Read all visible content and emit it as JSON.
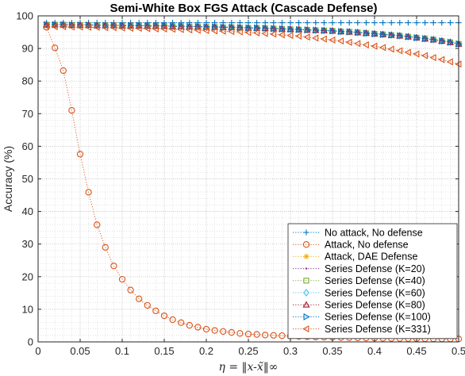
{
  "chart_data": {
    "type": "line",
    "title": "Semi-White Box FGS Attack (Cascade Defense)",
    "xlabel": "η = ‖x-x̃‖∞",
    "ylabel": "Accuracy (%)",
    "xlim": [
      0,
      0.5
    ],
    "ylim": [
      0,
      100
    ],
    "xticks": [
      0,
      0.05,
      0.1,
      0.15,
      0.2,
      0.25,
      0.3,
      0.35,
      0.4,
      0.45,
      0.5
    ],
    "xtick_labels": [
      "0",
      "0.05",
      "0.1",
      "0.15",
      "0.2",
      "0.25",
      "0.3",
      "0.35",
      "0.4",
      "0.45",
      "0.5"
    ],
    "yticks": [
      0,
      10,
      20,
      30,
      40,
      50,
      60,
      70,
      80,
      90,
      100
    ],
    "yticks_labels": [
      "0",
      "10",
      "20",
      "30",
      "40",
      "50",
      "60",
      "70",
      "80",
      "90",
      "100"
    ],
    "grid": true,
    "minor_grid": true,
    "legend_position": "bottom-right",
    "x_start": 0.01,
    "x_step": 0.01,
    "x_count": 50,
    "series": [
      {
        "name": "No attack, No defense",
        "color": "#0072BD",
        "marker": "plus",
        "values": [
          97.9,
          97.9,
          97.9,
          97.9,
          97.9,
          97.9,
          97.9,
          97.9,
          97.9,
          97.9,
          97.9,
          97.9,
          97.9,
          97.9,
          97.9,
          97.9,
          97.9,
          97.9,
          97.9,
          97.9,
          97.9,
          97.9,
          97.9,
          97.9,
          97.9,
          97.9,
          97.9,
          97.9,
          97.9,
          97.9,
          97.9,
          97.9,
          97.9,
          97.9,
          97.9,
          97.9,
          97.9,
          97.9,
          97.9,
          97.9,
          97.9,
          97.9,
          97.9,
          97.9,
          97.9,
          97.9,
          97.9,
          97.9,
          97.9,
          97.9
        ]
      },
      {
        "name": "Attack, No defense",
        "color": "#D95319",
        "marker": "circle",
        "values": [
          96.5,
          90.2,
          83.2,
          71.0,
          57.6,
          45.9,
          35.9,
          29.0,
          23.3,
          19.2,
          15.9,
          13.2,
          11.2,
          9.5,
          8.0,
          6.8,
          5.9,
          5.1,
          4.5,
          3.9,
          3.5,
          3.2,
          2.9,
          2.6,
          2.4,
          2.3,
          2.1,
          2.0,
          1.9,
          1.8,
          1.7,
          1.6,
          1.5,
          1.45,
          1.4,
          1.35,
          1.3,
          1.25,
          1.2,
          1.15,
          1.1,
          1.08,
          1.05,
          1.02,
          1.0,
          0.98,
          0.96,
          0.94,
          0.92,
          0.9
        ]
      },
      {
        "name": "Attack, DAE Defense",
        "color": "#EDB120",
        "marker": "asterisk",
        "values": [
          97.4,
          97.4,
          97.4,
          97.3,
          97.3,
          97.3,
          97.2,
          97.2,
          97.2,
          97.1,
          97.1,
          97.1,
          97.0,
          97.0,
          97.0,
          96.9,
          96.9,
          96.8,
          96.8,
          96.7,
          96.7,
          96.6,
          96.6,
          96.5,
          96.4,
          96.4,
          96.3,
          96.2,
          96.1,
          96.0,
          95.9,
          95.8,
          95.7,
          95.6,
          95.5,
          95.3,
          95.2,
          95.0,
          94.8,
          94.6,
          94.4,
          94.2,
          94.0,
          93.7,
          93.4,
          93.1,
          92.8,
          92.4,
          92.0,
          91.5
        ]
      },
      {
        "name": "Series Defense (K=20)",
        "color": "#7E2F8E",
        "marker": "point",
        "values": [
          97.3,
          97.3,
          97.3,
          97.2,
          97.2,
          97.2,
          97.1,
          97.1,
          97.1,
          97.0,
          97.0,
          97.0,
          96.9,
          96.9,
          96.9,
          96.8,
          96.8,
          96.7,
          96.7,
          96.6,
          96.6,
          96.5,
          96.5,
          96.4,
          96.3,
          96.3,
          96.2,
          96.1,
          96.0,
          95.9,
          95.8,
          95.7,
          95.6,
          95.5,
          95.4,
          95.2,
          95.1,
          94.9,
          94.7,
          94.5,
          94.3,
          94.1,
          93.9,
          93.6,
          93.3,
          93.0,
          92.7,
          92.3,
          91.9,
          91.4
        ]
      },
      {
        "name": "Series Defense (K=40)",
        "color": "#77AC30",
        "marker": "square",
        "values": [
          97.3,
          97.3,
          97.3,
          97.2,
          97.2,
          97.2,
          97.1,
          97.1,
          97.1,
          97.0,
          97.0,
          97.0,
          96.9,
          96.9,
          96.9,
          96.8,
          96.8,
          96.7,
          96.7,
          96.6,
          96.6,
          96.5,
          96.5,
          96.4,
          96.3,
          96.3,
          96.2,
          96.1,
          96.0,
          95.9,
          95.8,
          95.7,
          95.6,
          95.5,
          95.4,
          95.2,
          95.1,
          94.9,
          94.7,
          94.5,
          94.3,
          94.1,
          93.9,
          93.6,
          93.3,
          93.0,
          92.7,
          92.3,
          91.9,
          91.4
        ]
      },
      {
        "name": "Series Defense (K=60)",
        "color": "#4DBEEE",
        "marker": "diamond",
        "values": [
          97.3,
          97.3,
          97.3,
          97.2,
          97.2,
          97.2,
          97.1,
          97.1,
          97.1,
          97.0,
          97.0,
          97.0,
          96.9,
          96.9,
          96.9,
          96.8,
          96.8,
          96.7,
          96.7,
          96.6,
          96.6,
          96.5,
          96.5,
          96.4,
          96.3,
          96.3,
          96.2,
          96.1,
          96.0,
          95.9,
          95.8,
          95.7,
          95.6,
          95.5,
          95.4,
          95.2,
          95.1,
          94.9,
          94.7,
          94.5,
          94.3,
          94.1,
          93.9,
          93.6,
          93.3,
          93.0,
          92.7,
          92.3,
          91.9,
          91.4
        ]
      },
      {
        "name": "Series Defense (K=80)",
        "color": "#A2142F",
        "marker": "triangle-up",
        "values": [
          97.3,
          97.3,
          97.3,
          97.2,
          97.2,
          97.2,
          97.1,
          97.1,
          97.1,
          97.0,
          97.0,
          97.0,
          96.9,
          96.9,
          96.9,
          96.8,
          96.8,
          96.7,
          96.7,
          96.6,
          96.6,
          96.5,
          96.5,
          96.4,
          96.3,
          96.3,
          96.2,
          96.1,
          96.0,
          95.9,
          95.8,
          95.7,
          95.6,
          95.5,
          95.4,
          95.2,
          95.1,
          94.9,
          94.7,
          94.5,
          94.3,
          94.1,
          93.9,
          93.6,
          93.3,
          93.0,
          92.7,
          92.3,
          91.9,
          91.4
        ]
      },
      {
        "name": "Series Defense (K=100)",
        "color": "#0072BD",
        "marker": "triangle-right",
        "values": [
          97.3,
          97.3,
          97.3,
          97.2,
          97.2,
          97.2,
          97.1,
          97.1,
          97.1,
          97.0,
          97.0,
          97.0,
          96.9,
          96.9,
          96.9,
          96.8,
          96.8,
          96.7,
          96.7,
          96.6,
          96.6,
          96.5,
          96.5,
          96.4,
          96.3,
          96.3,
          96.2,
          96.1,
          96.0,
          95.9,
          95.8,
          95.7,
          95.6,
          95.5,
          95.4,
          95.2,
          95.1,
          94.9,
          94.7,
          94.5,
          94.3,
          94.1,
          93.9,
          93.6,
          93.3,
          93.0,
          92.7,
          92.3,
          91.9,
          91.4
        ]
      },
      {
        "name": "Series Defense (K=331)",
        "color": "#D95319",
        "marker": "triangle-left",
        "values": [
          96.8,
          96.7,
          96.7,
          96.6,
          96.6,
          96.5,
          96.5,
          96.4,
          96.4,
          96.3,
          96.2,
          96.2,
          96.1,
          96.0,
          96.0,
          95.9,
          95.8,
          95.7,
          95.6,
          95.5,
          95.4,
          95.3,
          95.2,
          95.1,
          94.9,
          94.8,
          94.6,
          94.4,
          94.2,
          94.0,
          93.8,
          93.5,
          93.2,
          92.9,
          92.6,
          92.3,
          91.9,
          91.5,
          91.1,
          90.7,
          90.3,
          89.8,
          89.3,
          88.8,
          88.3,
          87.8,
          87.2,
          86.6,
          85.9,
          85.2
        ]
      }
    ]
  }
}
